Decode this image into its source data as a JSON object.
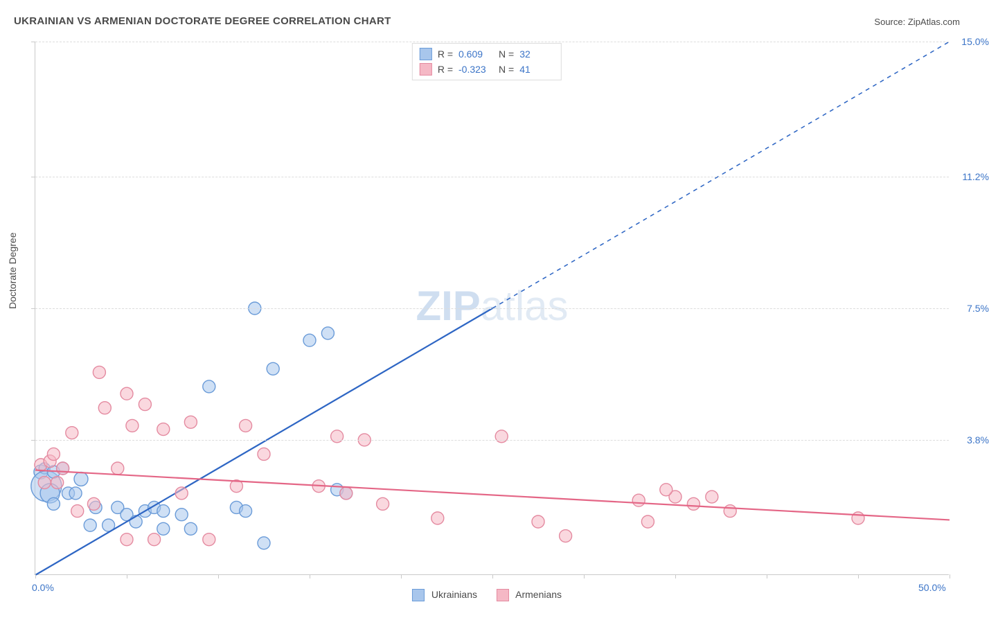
{
  "title": "UKRAINIAN VS ARMENIAN DOCTORATE DEGREE CORRELATION CHART",
  "source": {
    "label": "Source:",
    "value": "ZipAtlas.com"
  },
  "y_axis_title": "Doctorate Degree",
  "watermark": "ZIPatlas",
  "chart": {
    "type": "scatter",
    "xlim": [
      0.0,
      50.0
    ],
    "ylim": [
      0.0,
      15.0
    ],
    "xtick_step": 5.0,
    "x_axis_labels": [
      {
        "value": 0.0,
        "text": "0.0%"
      },
      {
        "value": 50.0,
        "text": "50.0%"
      }
    ],
    "y_gridlines": [
      {
        "value": 3.8,
        "label": "3.8%"
      },
      {
        "value": 7.5,
        "label": "7.5%"
      },
      {
        "value": 11.2,
        "label": "11.2%"
      },
      {
        "value": 15.0,
        "label": "15.0%"
      }
    ],
    "background_color": "#ffffff",
    "grid_color": "#dcdcdc",
    "axis_color": "#c9c9c9",
    "tick_label_color": "#3b74c7",
    "series": [
      {
        "name": "Ukrainians",
        "fill": "#a8c6ec",
        "stroke": "#6a9bd8",
        "fill_opacity": 0.55,
        "regression": {
          "R": 0.609,
          "N": 32,
          "x1": 0.0,
          "y1": 0.0,
          "x2": 50.0,
          "y2": 15.0,
          "solid_until_x": 25.0,
          "stroke": "#2e66c4",
          "stroke_width": 2.2
        },
        "points": [
          {
            "x": 0.3,
            "y": 2.9,
            "r": 10
          },
          {
            "x": 0.5,
            "y": 3.0,
            "r": 8
          },
          {
            "x": 0.6,
            "y": 2.5,
            "r": 22
          },
          {
            "x": 0.8,
            "y": 2.3,
            "r": 14
          },
          {
            "x": 1.0,
            "y": 2.9,
            "r": 9
          },
          {
            "x": 1.0,
            "y": 2.0,
            "r": 9
          },
          {
            "x": 1.5,
            "y": 3.0,
            "r": 9
          },
          {
            "x": 1.8,
            "y": 2.3,
            "r": 9
          },
          {
            "x": 2.2,
            "y": 2.3,
            "r": 9
          },
          {
            "x": 2.5,
            "y": 2.7,
            "r": 10
          },
          {
            "x": 3.0,
            "y": 1.4,
            "r": 9
          },
          {
            "x": 3.3,
            "y": 1.9,
            "r": 9
          },
          {
            "x": 4.0,
            "y": 1.4,
            "r": 9
          },
          {
            "x": 4.5,
            "y": 1.9,
            "r": 9
          },
          {
            "x": 5.0,
            "y": 1.7,
            "r": 9
          },
          {
            "x": 5.5,
            "y": 1.5,
            "r": 9
          },
          {
            "x": 6.0,
            "y": 1.8,
            "r": 9
          },
          {
            "x": 6.5,
            "y": 1.9,
            "r": 9
          },
          {
            "x": 7.0,
            "y": 1.8,
            "r": 9
          },
          {
            "x": 7.0,
            "y": 1.3,
            "r": 9
          },
          {
            "x": 8.0,
            "y": 1.7,
            "r": 9
          },
          {
            "x": 8.5,
            "y": 1.3,
            "r": 9
          },
          {
            "x": 9.5,
            "y": 5.3,
            "r": 9
          },
          {
            "x": 11.0,
            "y": 1.9,
            "r": 9
          },
          {
            "x": 11.5,
            "y": 1.8,
            "r": 9
          },
          {
            "x": 12.0,
            "y": 7.5,
            "r": 9
          },
          {
            "x": 12.5,
            "y": 0.9,
            "r": 9
          },
          {
            "x": 13.0,
            "y": 5.8,
            "r": 9
          },
          {
            "x": 15.0,
            "y": 6.6,
            "r": 9
          },
          {
            "x": 16.0,
            "y": 6.8,
            "r": 9
          },
          {
            "x": 16.5,
            "y": 2.4,
            "r": 9
          },
          {
            "x": 17.0,
            "y": 2.3,
            "r": 9
          }
        ]
      },
      {
        "name": "Armenians",
        "fill": "#f5b8c5",
        "stroke": "#e48aa0",
        "fill_opacity": 0.55,
        "regression": {
          "R": -0.323,
          "N": 41,
          "x1": 0.0,
          "y1": 2.95,
          "x2": 50.0,
          "y2": 1.55,
          "solid_until_x": 50.0,
          "stroke": "#e46686",
          "stroke_width": 2.2
        },
        "points": [
          {
            "x": 0.3,
            "y": 3.1,
            "r": 9
          },
          {
            "x": 0.5,
            "y": 2.6,
            "r": 9
          },
          {
            "x": 0.8,
            "y": 3.2,
            "r": 9
          },
          {
            "x": 1.0,
            "y": 3.4,
            "r": 9
          },
          {
            "x": 1.2,
            "y": 2.6,
            "r": 9
          },
          {
            "x": 1.5,
            "y": 3.0,
            "r": 9
          },
          {
            "x": 2.0,
            "y": 4.0,
            "r": 9
          },
          {
            "x": 2.3,
            "y": 1.8,
            "r": 9
          },
          {
            "x": 3.2,
            "y": 2.0,
            "r": 9
          },
          {
            "x": 3.5,
            "y": 5.7,
            "r": 9
          },
          {
            "x": 3.8,
            "y": 4.7,
            "r": 9
          },
          {
            "x": 4.5,
            "y": 3.0,
            "r": 9
          },
          {
            "x": 5.0,
            "y": 5.1,
            "r": 9
          },
          {
            "x": 5.0,
            "y": 1.0,
            "r": 9
          },
          {
            "x": 5.3,
            "y": 4.2,
            "r": 9
          },
          {
            "x": 6.0,
            "y": 4.8,
            "r": 9
          },
          {
            "x": 6.5,
            "y": 1.0,
            "r": 9
          },
          {
            "x": 7.0,
            "y": 4.1,
            "r": 9
          },
          {
            "x": 8.0,
            "y": 2.3,
            "r": 9
          },
          {
            "x": 8.5,
            "y": 4.3,
            "r": 9
          },
          {
            "x": 9.5,
            "y": 1.0,
            "r": 9
          },
          {
            "x": 11.0,
            "y": 2.5,
            "r": 9
          },
          {
            "x": 11.5,
            "y": 4.2,
            "r": 9
          },
          {
            "x": 12.5,
            "y": 3.4,
            "r": 9
          },
          {
            "x": 15.5,
            "y": 2.5,
            "r": 9
          },
          {
            "x": 16.5,
            "y": 3.9,
            "r": 9
          },
          {
            "x": 17.0,
            "y": 2.3,
            "r": 9
          },
          {
            "x": 18.0,
            "y": 3.8,
            "r": 9
          },
          {
            "x": 19.0,
            "y": 2.0,
            "r": 9
          },
          {
            "x": 22.0,
            "y": 1.6,
            "r": 9
          },
          {
            "x": 25.5,
            "y": 3.9,
            "r": 9
          },
          {
            "x": 27.5,
            "y": 1.5,
            "r": 9
          },
          {
            "x": 29.0,
            "y": 1.1,
            "r": 9
          },
          {
            "x": 33.0,
            "y": 2.1,
            "r": 9
          },
          {
            "x": 33.5,
            "y": 1.5,
            "r": 9
          },
          {
            "x": 35.0,
            "y": 2.2,
            "r": 9
          },
          {
            "x": 36.0,
            "y": 2.0,
            "r": 9
          },
          {
            "x": 37.0,
            "y": 2.2,
            "r": 9
          },
          {
            "x": 45.0,
            "y": 1.6,
            "r": 9
          },
          {
            "x": 38.0,
            "y": 1.8,
            "r": 9
          },
          {
            "x": 34.5,
            "y": 2.4,
            "r": 9
          }
        ]
      }
    ]
  },
  "top_legend_labels": {
    "R_prefix": "R =",
    "N_prefix": "N ="
  },
  "bottom_legend": [
    {
      "label": "Ukrainians",
      "fill": "#a8c6ec",
      "stroke": "#6a9bd8"
    },
    {
      "label": "Armenians",
      "fill": "#f5b8c5",
      "stroke": "#e48aa0"
    }
  ]
}
